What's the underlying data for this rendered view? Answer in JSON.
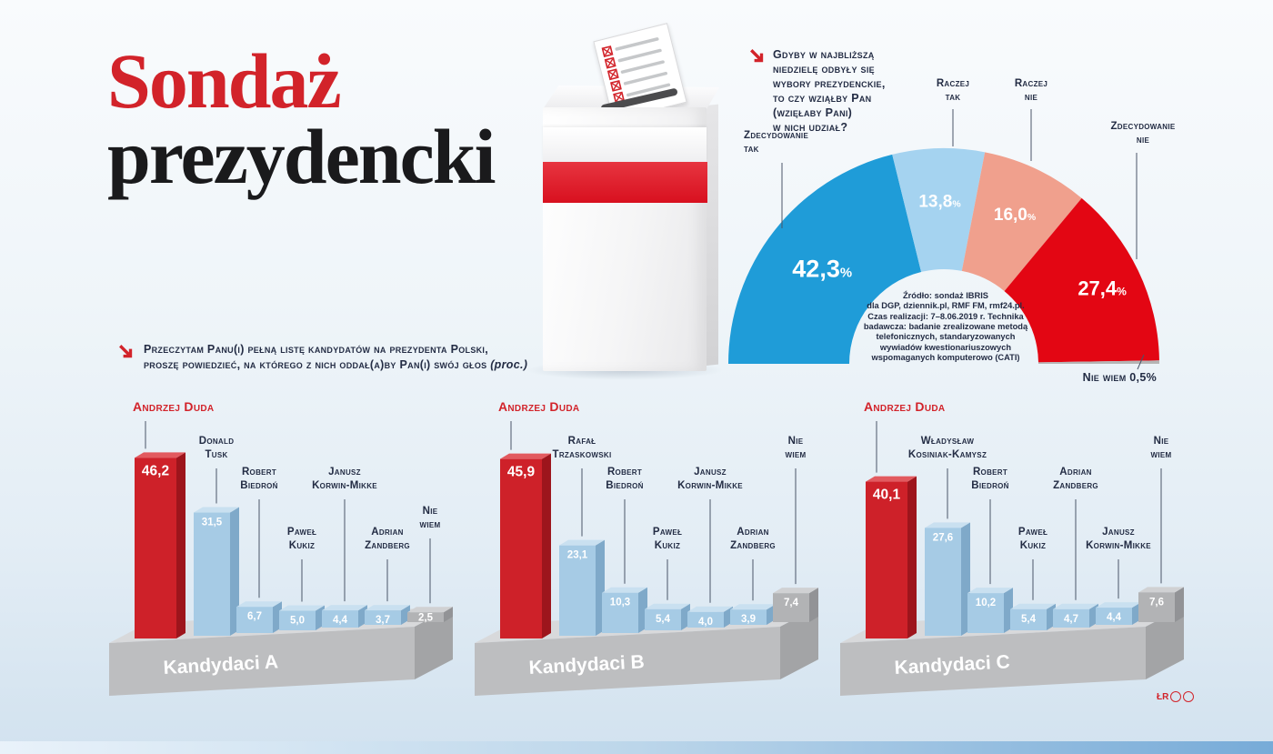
{
  "page": {
    "title_line1": "Sondaż",
    "title_line2": "prezydencki",
    "credit": "ŁR"
  },
  "questions": {
    "turnout": {
      "lines": [
        "Gdyby w najbliższą",
        "niedzielę odbyły się",
        "wybory prezydenckie,",
        "to czy wziąłby Pan",
        "(wzięłaby Pani)",
        "w nich udział?"
      ]
    },
    "candidates": {
      "line1": "Przeczytam Panu(i) pełną listę kandydatów na prezydenta Polski,",
      "line2": "proszę powiedzieć, na którego z nich oddał(a)by Pan(i) swój głos",
      "suffix": "(proc.)"
    }
  },
  "source": {
    "lines": [
      "Źródło: sondaż IBRIS",
      "dla DGP, dziennik.pl, RMF FM, rmf24.pl.",
      "Czas realizacji: 7–8.06.2019 r. Technika",
      "badawcza: badanie zrealizowane metodą",
      "telefonicznych, standaryzowanych",
      "wywiadów kwestionariuszowych",
      "wspomaganych komputerowo (CATI)"
    ]
  },
  "colors": {
    "accent_red": "#d2232a",
    "navy": "#232c44",
    "seg_blue": "#1f9cd8",
    "seg_lightblue": "#a5d3f0",
    "seg_salmon": "#f0a08d",
    "seg_red": "#e30613",
    "seg_gray": "#b5b5b5",
    "bar_red_front": "#ce2129",
    "bar_red_side": "#9d151c",
    "bar_red_top": "#e25a5f",
    "bar_blue_front": "#a6cbe5",
    "bar_blue_side": "#7fa9c9",
    "bar_blue_top": "#c9e0f0",
    "bar_gray_front": "#b2b3b5",
    "bar_gray_side": "#929396",
    "bar_gray_top": "#d0d1d3",
    "platform_top": "#d8d9db",
    "platform_front": "#bdbec0",
    "platform_side": "#a3a4a6"
  },
  "chart_data": [
    {
      "type": "half-donut",
      "question": "Gdyby w najbliższą niedzielę odbyły się wybory prezydenckie, to czy wziąłby Pan (wzięłaby Pani) w nich udział?",
      "unit": "%",
      "segments": [
        {
          "label": "Zdecydowanie tak",
          "value": 42.3,
          "display": "42,3",
          "color": "#1f9cd8"
        },
        {
          "label": "Raczej tak",
          "value": 13.8,
          "display": "13,8",
          "color": "#a5d3f0"
        },
        {
          "label": "Raczej nie",
          "value": 16.0,
          "display": "16,0",
          "color": "#f0a08d"
        },
        {
          "label": "Zdecydowanie nie",
          "value": 27.4,
          "display": "27,4",
          "color": "#e30613"
        },
        {
          "label": "Nie wiem",
          "value": 0.5,
          "display": "0,5",
          "color": "#b5b5b5"
        }
      ]
    },
    {
      "type": "bar",
      "title": "Kandydaci A",
      "unit": "proc.",
      "bars": [
        {
          "name": "Andrzej Duda",
          "lines": [
            "Andrzej Duda"
          ],
          "value": 46.2,
          "display": "46,2",
          "color": "red"
        },
        {
          "name": "Donald Tusk",
          "lines": [
            "Donald",
            "Tusk"
          ],
          "value": 31.5,
          "display": "31,5",
          "color": "blue"
        },
        {
          "name": "Robert Biedroń",
          "lines": [
            "Robert",
            "Biedroń"
          ],
          "value": 6.7,
          "display": "6,7",
          "color": "blue"
        },
        {
          "name": "Paweł Kukiz",
          "lines": [
            "Paweł",
            "Kukiz"
          ],
          "value": 5.0,
          "display": "5,0",
          "color": "blue"
        },
        {
          "name": "Janusz Korwin-Mikke",
          "lines": [
            "Janusz",
            "Korwin-Mikke"
          ],
          "value": 4.4,
          "display": "4,4",
          "color": "blue"
        },
        {
          "name": "Adrian Zandberg",
          "lines": [
            "Adrian",
            "Zandberg"
          ],
          "value": 3.7,
          "display": "3,7",
          "color": "blue"
        },
        {
          "name": "Nie wiem",
          "lines": [
            "Nie",
            "wiem"
          ],
          "value": 2.5,
          "display": "2,5",
          "color": "gray"
        }
      ]
    },
    {
      "type": "bar",
      "title": "Kandydaci B",
      "unit": "proc.",
      "bars": [
        {
          "name": "Andrzej Duda",
          "lines": [
            "Andrzej Duda"
          ],
          "value": 45.9,
          "display": "45,9",
          "color": "red"
        },
        {
          "name": "Rafał Trzaskowski",
          "lines": [
            "Rafał",
            "Trzaskowski"
          ],
          "value": 23.1,
          "display": "23,1",
          "color": "blue"
        },
        {
          "name": "Robert Biedroń",
          "lines": [
            "Robert",
            "Biedroń"
          ],
          "value": 10.3,
          "display": "10,3",
          "color": "blue"
        },
        {
          "name": "Paweł Kukiz",
          "lines": [
            "Paweł",
            "Kukiz"
          ],
          "value": 5.4,
          "display": "5,4",
          "color": "blue"
        },
        {
          "name": "Janusz Korwin-Mikke",
          "lines": [
            "Janusz",
            "Korwin-Mikke"
          ],
          "value": 4.0,
          "display": "4,0",
          "color": "blue"
        },
        {
          "name": "Adrian Zandberg",
          "lines": [
            "Adrian",
            "Zandberg"
          ],
          "value": 3.9,
          "display": "3,9",
          "color": "blue"
        },
        {
          "name": "Nie wiem",
          "lines": [
            "Nie",
            "wiem"
          ],
          "value": 7.4,
          "display": "7,4",
          "color": "gray"
        }
      ]
    },
    {
      "type": "bar",
      "title": "Kandydaci C",
      "unit": "proc.",
      "bars": [
        {
          "name": "Andrzej Duda",
          "lines": [
            "Andrzej Duda"
          ],
          "value": 40.1,
          "display": "40,1",
          "color": "red"
        },
        {
          "name": "Władysław Kosiniak-Kamysz",
          "lines": [
            "Władysław",
            "Kosiniak-Kamysz"
          ],
          "value": 27.6,
          "display": "27,6",
          "color": "blue"
        },
        {
          "name": "Robert Biedroń",
          "lines": [
            "Robert",
            "Biedroń"
          ],
          "value": 10.2,
          "display": "10,2",
          "color": "blue"
        },
        {
          "name": "Paweł Kukiz",
          "lines": [
            "Paweł",
            "Kukiz"
          ],
          "value": 5.4,
          "display": "5,4",
          "color": "blue"
        },
        {
          "name": "Adrian Zandberg",
          "lines": [
            "Adrian",
            "Zandberg"
          ],
          "value": 4.7,
          "display": "4,7",
          "color": "blue"
        },
        {
          "name": "Janusz Korwin-Mikke",
          "lines": [
            "Janusz",
            "Korwin-Mikke"
          ],
          "value": 4.4,
          "display": "4,4",
          "color": "blue"
        },
        {
          "name": "Nie wiem",
          "lines": [
            "Nie",
            "wiem"
          ],
          "value": 7.6,
          "display": "7,6",
          "color": "gray"
        }
      ]
    }
  ]
}
